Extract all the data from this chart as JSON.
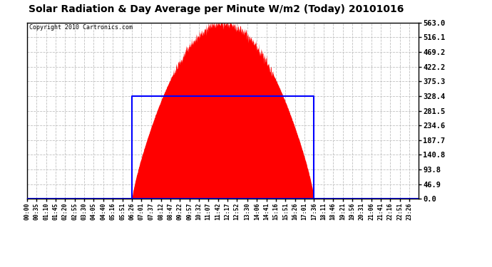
{
  "title": "Solar Radiation & Day Average per Minute W/m2 (Today) 20101016",
  "copyright": "Copyright 2010 Cartronics.com",
  "ymax": 563.0,
  "yticks": [
    0.0,
    46.9,
    93.8,
    140.8,
    187.7,
    234.6,
    281.5,
    328.4,
    375.3,
    422.2,
    469.2,
    516.1,
    563.0
  ],
  "num_minutes": 1440,
  "sunrise_idx": 386,
  "sunset_idx": 1056,
  "peak_idx": 772,
  "peak_val": 563.0,
  "avg_val": 328.4,
  "fill_color": "#ff0000",
  "avg_line_color": "#0000ff",
  "bg_color": "#ffffff",
  "plot_bg_color": "#ffffff",
  "grid_color": "#c0c0c0",
  "border_color": "#000000",
  "title_color": "#000000",
  "copyright_color": "#000000",
  "x_tick_labels": [
    "00:00",
    "00:35",
    "01:10",
    "01:45",
    "02:20",
    "02:55",
    "03:30",
    "04:05",
    "04:40",
    "05:16",
    "05:51",
    "06:26",
    "07:01",
    "07:37",
    "08:12",
    "08:47",
    "09:22",
    "09:57",
    "10:32",
    "11:07",
    "11:42",
    "12:17",
    "12:52",
    "13:30",
    "14:06",
    "14:41",
    "15:16",
    "15:51",
    "16:26",
    "17:01",
    "17:36",
    "18:11",
    "18:46",
    "19:21",
    "19:56",
    "20:31",
    "21:06",
    "21:41",
    "22:16",
    "22:51",
    "23:26"
  ],
  "x_tick_positions": [
    0,
    35,
    70,
    105,
    140,
    175,
    210,
    245,
    280,
    316,
    351,
    386,
    421,
    457,
    492,
    527,
    562,
    597,
    632,
    667,
    702,
    737,
    772,
    810,
    846,
    881,
    916,
    951,
    986,
    1021,
    1056,
    1091,
    1126,
    1161,
    1196,
    1231,
    1266,
    1301,
    1336,
    1371,
    1406
  ]
}
